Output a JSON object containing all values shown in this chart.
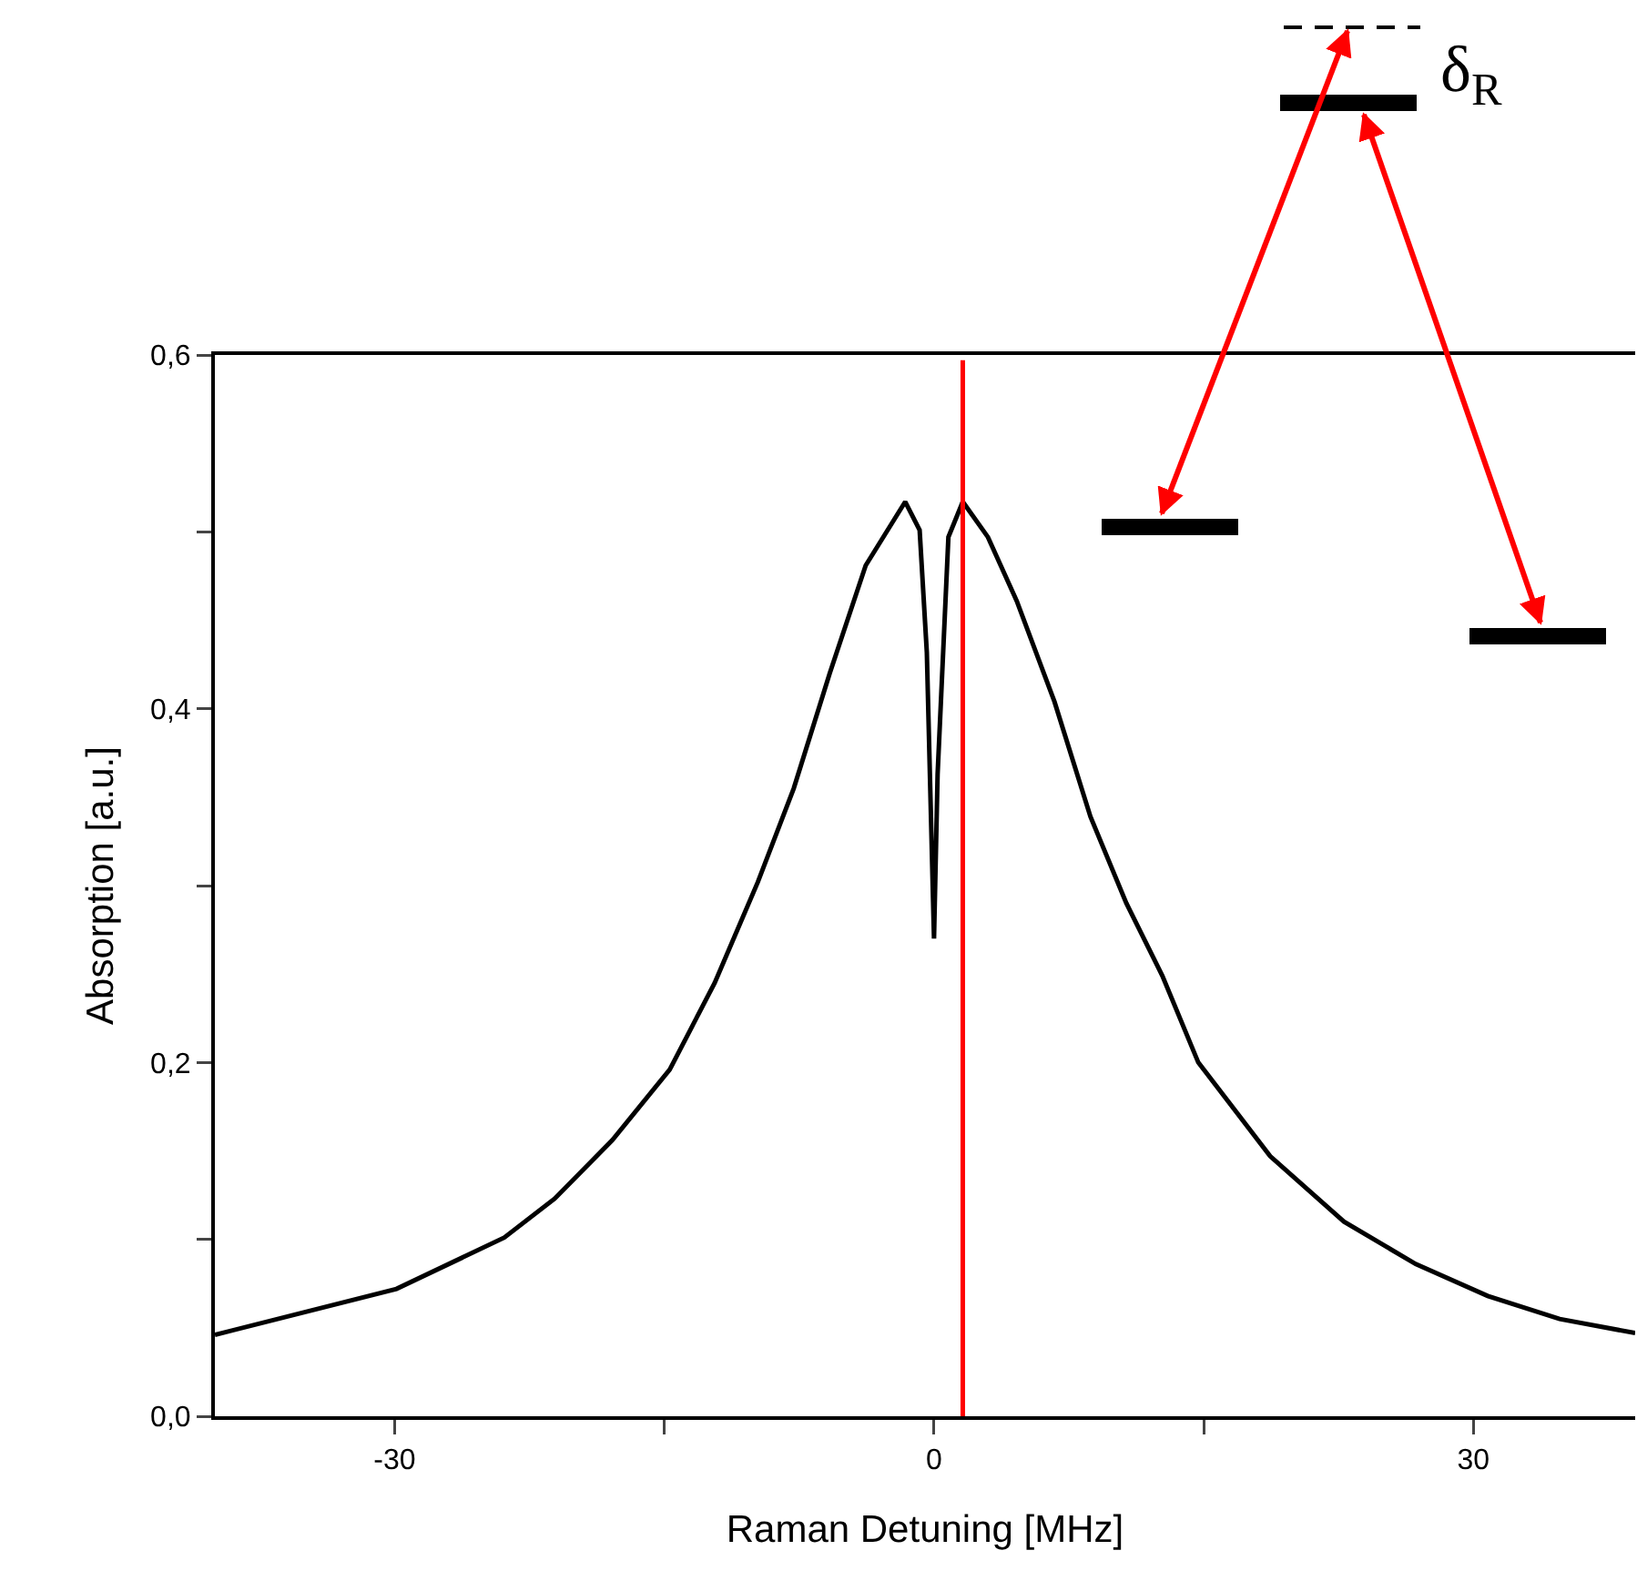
{
  "chart_data": {
    "type": "line",
    "xlabel": "Raman Detuning [MHz]",
    "ylabel": "Absorption [a.u.]",
    "x": [
      -40,
      -29.9,
      -23.9,
      -21.1,
      -17.9,
      -14.7,
      -12.2,
      -9.8,
      -7.8,
      -5.8,
      -3.8,
      -1.6,
      -0.8,
      -0.4,
      0,
      0.2,
      0.8,
      1.6,
      3.0,
      4.6,
      6.7,
      8.7,
      10.7,
      12.7,
      14.7,
      18.7,
      22.8,
      26.8,
      30.8,
      34.8,
      39
    ],
    "series": [
      {
        "color": "#000000",
        "values": [
          0.046,
          0.072,
          0.101,
          0.123,
          0.156,
          0.196,
          0.245,
          0.302,
          0.355,
          0.42,
          0.481,
          0.517,
          0.501,
          0.432,
          0.27,
          0.363,
          0.497,
          0.517,
          0.497,
          0.461,
          0.404,
          0.339,
          0.29,
          0.249,
          0.2,
          0.147,
          0.11,
          0.086,
          0.068,
          0.055,
          0.047
        ]
      }
    ],
    "xlim": [
      -40,
      39
    ],
    "xticks": [
      -30,
      {
        "value": -15,
        "label": null
      },
      0,
      {
        "value": 15,
        "label": null
      },
      30
    ],
    "ylim": [
      0,
      0.6
    ],
    "yticks": [
      {
        "value": 0,
        "label": "0,0"
      },
      {
        "value": 0.1,
        "label": null
      },
      {
        "value": 0.2,
        "label": "0,2"
      },
      {
        "value": 0.3,
        "label": null
      },
      {
        "value": 0.4,
        "label": "0,4"
      },
      {
        "value": 0.5,
        "label": null
      },
      {
        "value": 0.6,
        "label": "0,6"
      }
    ],
    "ref_lines": [
      {
        "axis": "x",
        "value": 1.6,
        "color": "#ff0000"
      }
    ],
    "annotations": [
      "δ$_{R}$"
    ],
    "grid": false,
    "marker": "none",
    "line_style": "solid"
  }
}
